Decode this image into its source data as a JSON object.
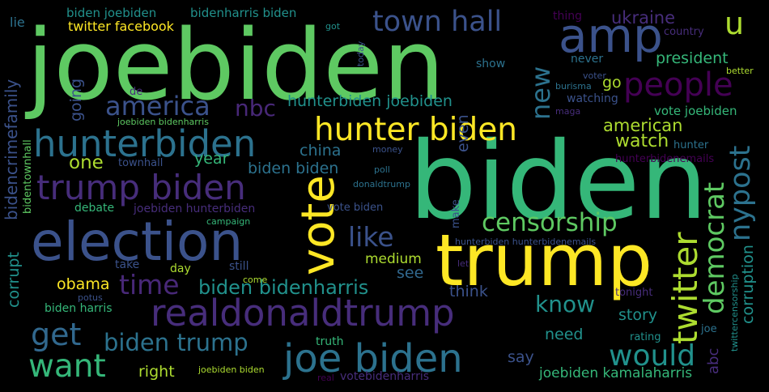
{
  "background": "#000000",
  "palette": {
    "purple": "#440154",
    "indigo": "#472d7b",
    "blue": "#3b528b",
    "steel": "#2c728e",
    "teal": "#21918c",
    "green_teal": "#28ae80",
    "green": "#5ec962",
    "lime": "#addc30",
    "yellow": "#fde725"
  },
  "words": [
    {
      "text": "joebiden",
      "color": "#5ec962"
    },
    {
      "text": "biden",
      "color": "#35b779"
    },
    {
      "text": "trump",
      "color": "#fde725"
    },
    {
      "text": "election",
      "color": "#3b528b"
    },
    {
      "text": "amp",
      "color": "#3b528b"
    },
    {
      "text": "vote",
      "color": "#fde725"
    },
    {
      "text": "hunterbiden",
      "color": "#2c728e"
    },
    {
      "text": "joe biden",
      "color": "#2c728e"
    },
    {
      "text": "realdonaldtrump",
      "color": "#472d7b"
    },
    {
      "text": "trump biden",
      "color": "#472d7b"
    },
    {
      "text": "hunter biden",
      "color": "#fde725"
    },
    {
      "text": "town hall",
      "color": "#3b528b"
    },
    {
      "text": "people",
      "color": "#440154"
    },
    {
      "text": "twitter",
      "color": "#addc30"
    },
    {
      "text": "censorship",
      "color": "#5ec962"
    },
    {
      "text": "america",
      "color": "#3b528b"
    },
    {
      "text": "time",
      "color": "#482878"
    },
    {
      "text": "get",
      "color": "#31688e"
    },
    {
      "text": "want",
      "color": "#35b779"
    },
    {
      "text": "would",
      "color": "#21918c"
    },
    {
      "text": "biden trump",
      "color": "#2c728e"
    },
    {
      "text": "nypost",
      "color": "#2c728e"
    },
    {
      "text": "democrat",
      "color": "#5ec962"
    },
    {
      "text": "like",
      "color": "#3b528b"
    },
    {
      "text": "know",
      "color": "#21918c"
    },
    {
      "text": "u",
      "color": "#addc30"
    },
    {
      "text": "new",
      "color": "#2c728e"
    },
    {
      "text": "nbc",
      "color": "#482878"
    },
    {
      "text": "biden bidenharris",
      "color": "#21918c"
    },
    {
      "text": "ukraine",
      "color": "#472d7b"
    },
    {
      "text": "president",
      "color": "#35b779"
    },
    {
      "text": "hunterbiden joebiden",
      "color": "#21918c"
    },
    {
      "text": "one",
      "color": "#addc30"
    },
    {
      "text": "corruption",
      "color": "#21918c"
    },
    {
      "text": "american",
      "color": "#addc30"
    },
    {
      "text": "go",
      "color": "#addc30"
    },
    {
      "text": "watch",
      "color": "#addc30"
    },
    {
      "text": "china",
      "color": "#2c728e"
    },
    {
      "text": "year",
      "color": "#35b779"
    },
    {
      "text": "biden biden",
      "color": "#2c728e"
    },
    {
      "text": "story",
      "color": "#21918c"
    },
    {
      "text": "need",
      "color": "#21918c"
    },
    {
      "text": "right",
      "color": "#addc30"
    },
    {
      "text": "say",
      "color": "#3b528b"
    },
    {
      "text": "think",
      "color": "#3b528b"
    },
    {
      "text": "see",
      "color": "#31688e"
    },
    {
      "text": "obama",
      "color": "#fde725"
    },
    {
      "text": "bidencrimefamily",
      "color": "#3b528b"
    },
    {
      "text": "corrupt",
      "color": "#21918c"
    },
    {
      "text": "going",
      "color": "#3b528b"
    },
    {
      "text": "even",
      "color": "#3b528b"
    },
    {
      "text": "medium",
      "color": "#addc30"
    },
    {
      "text": "abc",
      "color": "#472d7b"
    },
    {
      "text": "joebiden kamalaharris",
      "color": "#35b779"
    },
    {
      "text": "twitter facebook",
      "color": "#fde725"
    },
    {
      "text": "biden joebiden",
      "color": "#21918c"
    },
    {
      "text": "bidenharris biden",
      "color": "#21918c"
    },
    {
      "text": "lie",
      "color": "#2c728e"
    },
    {
      "text": "vote joebiden",
      "color": "#35b779"
    },
    {
      "text": "watching",
      "color": "#3b528b"
    },
    {
      "text": "joebiden hunterbiden",
      "color": "#472d7b"
    },
    {
      "text": "biden harris",
      "color": "#35b779"
    },
    {
      "text": "votebidenharris",
      "color": "#472d7b"
    },
    {
      "text": "debate",
      "color": "#35b779"
    },
    {
      "text": "bidentownhall",
      "color": "#5ec962"
    },
    {
      "text": "take",
      "color": "#3b528b"
    },
    {
      "text": "day",
      "color": "#addc30"
    },
    {
      "text": "still",
      "color": "#3b528b"
    },
    {
      "text": "truth",
      "color": "#35b779"
    },
    {
      "text": "show",
      "color": "#2c728e"
    },
    {
      "text": "never",
      "color": "#2c728e"
    },
    {
      "text": "thing",
      "color": "#440154"
    },
    {
      "text": "country",
      "color": "#472d7b"
    },
    {
      "text": "tonight",
      "color": "#472d7b"
    },
    {
      "text": "rating",
      "color": "#21918c"
    },
    {
      "text": "joe",
      "color": "#2c728e"
    },
    {
      "text": "hunter",
      "color": "#2c728e"
    },
    {
      "text": "hunterbidenemails",
      "color": "#440154"
    },
    {
      "text": "townhall",
      "color": "#3b528b"
    },
    {
      "text": "vote biden",
      "color": "#3b528b"
    },
    {
      "text": "make",
      "color": "#3b528b"
    },
    {
      "text": "joebiden bidenharris",
      "color": "#5ec962"
    },
    {
      "text": "hunterbiden hunterbidenemails",
      "color": "#3b528b"
    },
    {
      "text": "campaign",
      "color": "#35b779"
    },
    {
      "text": "better",
      "color": "#addc30"
    },
    {
      "text": "voter",
      "color": "#3b528b"
    },
    {
      "text": "burisma",
      "color": "#2c728e"
    },
    {
      "text": "maga",
      "color": "#472d7b"
    },
    {
      "text": "money",
      "color": "#3b528b"
    },
    {
      "text": "poll",
      "color": "#2c728e"
    },
    {
      "text": "donaldtrump",
      "color": "#2c728e"
    },
    {
      "text": "let",
      "color": "#472d7b"
    },
    {
      "text": "come",
      "color": "#addc30"
    },
    {
      "text": "potus",
      "color": "#3b528b"
    },
    {
      "text": "twittercensorship",
      "color": "#21918c"
    },
    {
      "text": "joebiden biden",
      "color": "#addc30"
    },
    {
      "text": "real",
      "color": "#440154"
    },
    {
      "text": "got",
      "color": "#21918c"
    },
    {
      "text": "today",
      "color": "#3b528b"
    },
    {
      "text": "de",
      "color": "#472d7b"
    }
  ]
}
